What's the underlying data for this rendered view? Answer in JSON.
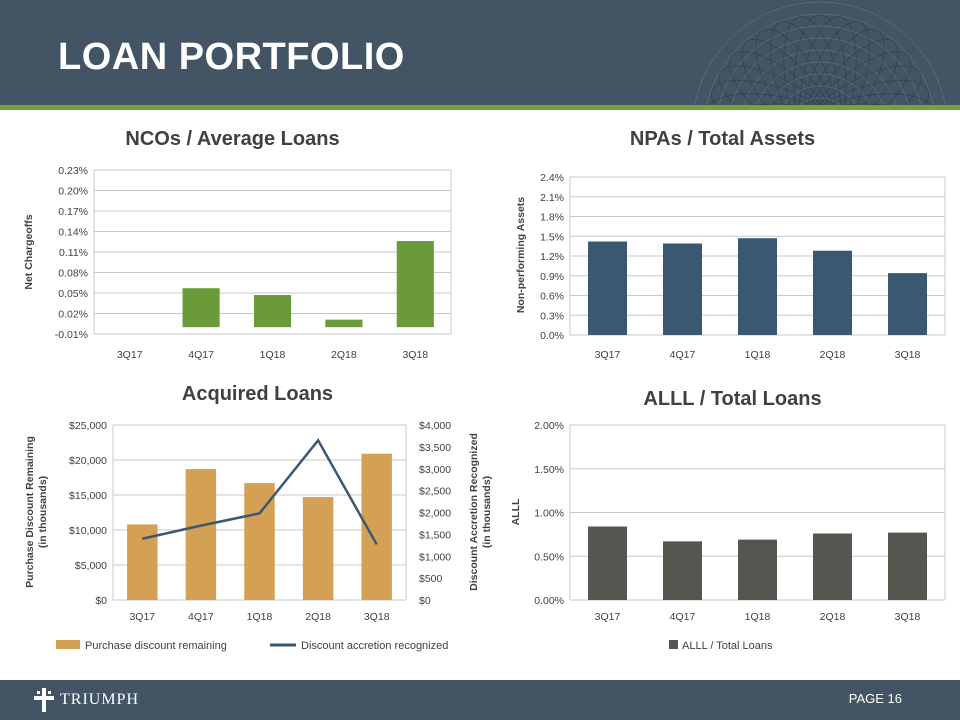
{
  "header": {
    "title": "LOAN PORTFOLIO"
  },
  "footer": {
    "logo_text": "TRIUMPH",
    "page_label": "PAGE 16"
  },
  "colors": {
    "header_bg": "#435565",
    "accent_green": "#74a23f",
    "nco_bar": "#6a9a3a",
    "npa_bar": "#3b5873",
    "acquired_bar": "#d4a054",
    "acquired_line": "#3b5873",
    "alll_bar": "#57554f"
  },
  "icons": {
    "logo": "cross-icon",
    "ornament": "guilloche-rosette-icon"
  },
  "chart_data": [
    {
      "id": "nco",
      "type": "bar",
      "title": "NCOs / Average Loans",
      "ylabel": "Net Chargeoffs",
      "categories": [
        "3Q17",
        "4Q17",
        "1Q18",
        "2Q18",
        "3Q18"
      ],
      "values": [
        0.0,
        0.057,
        0.047,
        0.011,
        0.126
      ],
      "ylim": [
        -0.01,
        0.23
      ],
      "yticks": [
        -0.01,
        0.02,
        0.05,
        0.08,
        0.11,
        0.14,
        0.17,
        0.2,
        0.23
      ],
      "ytick_labels": [
        "-0.01%",
        "0.02%",
        "0.05%",
        "0.08%",
        "0.11%",
        "0.14%",
        "0.17%",
        "0.20%",
        "0.23%"
      ],
      "grid": true
    },
    {
      "id": "npa",
      "type": "bar",
      "title": "NPAs / Total Assets",
      "ylabel": "Non-performing Assets",
      "categories": [
        "3Q17",
        "4Q17",
        "1Q18",
        "2Q18",
        "3Q18"
      ],
      "values": [
        1.42,
        1.39,
        1.47,
        1.28,
        0.94
      ],
      "ylim": [
        0,
        2.4
      ],
      "yticks": [
        0,
        0.3,
        0.6,
        0.9,
        1.2,
        1.5,
        1.8,
        2.1,
        2.4
      ],
      "ytick_labels": [
        "0.0%",
        "0.3%",
        "0.6%",
        "0.9%",
        "1.2%",
        "1.5%",
        "1.8%",
        "2.1%",
        "2.4%"
      ],
      "grid": true
    },
    {
      "id": "acquired",
      "type": "bar",
      "title": "Acquired Loans",
      "ylabel": "Purchase Discount Remaining (in thousands)",
      "ylabel_lines": [
        "Purchase Discount Remaining",
        "(in thousands)"
      ],
      "y2label": "Discount Accretion Recognized (in thousands)",
      "y2label_lines": [
        "Discount Accretion Recognized",
        "(in thousands)"
      ],
      "categories": [
        "3Q17",
        "4Q17",
        "1Q18",
        "2Q18",
        "3Q18"
      ],
      "series": [
        {
          "name": "Purchase discount remaining",
          "type": "bar",
          "axis": "left",
          "values": [
            10800,
            18700,
            16700,
            14700,
            20900
          ]
        },
        {
          "name": "Discount accretion recognized",
          "type": "line",
          "axis": "right",
          "values": [
            1400,
            1700,
            1980,
            3650,
            1270
          ]
        }
      ],
      "ylim": [
        0,
        25000
      ],
      "yticks": [
        0,
        5000,
        10000,
        15000,
        20000,
        25000
      ],
      "ytick_labels": [
        "$0",
        "$5,000",
        "$10,000",
        "$15,000",
        "$20,000",
        "$25,000"
      ],
      "y2lim": [
        0,
        4000
      ],
      "y2ticks": [
        0,
        500,
        1000,
        1500,
        2000,
        2500,
        3000,
        3500,
        4000
      ],
      "y2tick_labels": [
        "$0",
        "$500",
        "$1,000",
        "$1,500",
        "$2,000",
        "$2,500",
        "$3,000",
        "$3,500",
        "$4,000"
      ],
      "grid": true,
      "legend": "bottom"
    },
    {
      "id": "alll",
      "type": "bar",
      "title": "ALLL / Total Loans",
      "ylabel": "ALLL",
      "categories": [
        "3Q17",
        "4Q17",
        "1Q18",
        "2Q18",
        "3Q18"
      ],
      "series": [
        {
          "name": "ALLL / Total Loans",
          "values": [
            0.84,
            0.67,
            0.69,
            0.76,
            0.77
          ]
        }
      ],
      "ylim": [
        0,
        2.0
      ],
      "yticks": [
        0,
        0.5,
        1.0,
        1.5,
        2.0
      ],
      "ytick_labels": [
        "0.00%",
        "0.50%",
        "1.00%",
        "1.50%",
        "2.00%"
      ],
      "grid": true,
      "legend": "bottom"
    }
  ]
}
